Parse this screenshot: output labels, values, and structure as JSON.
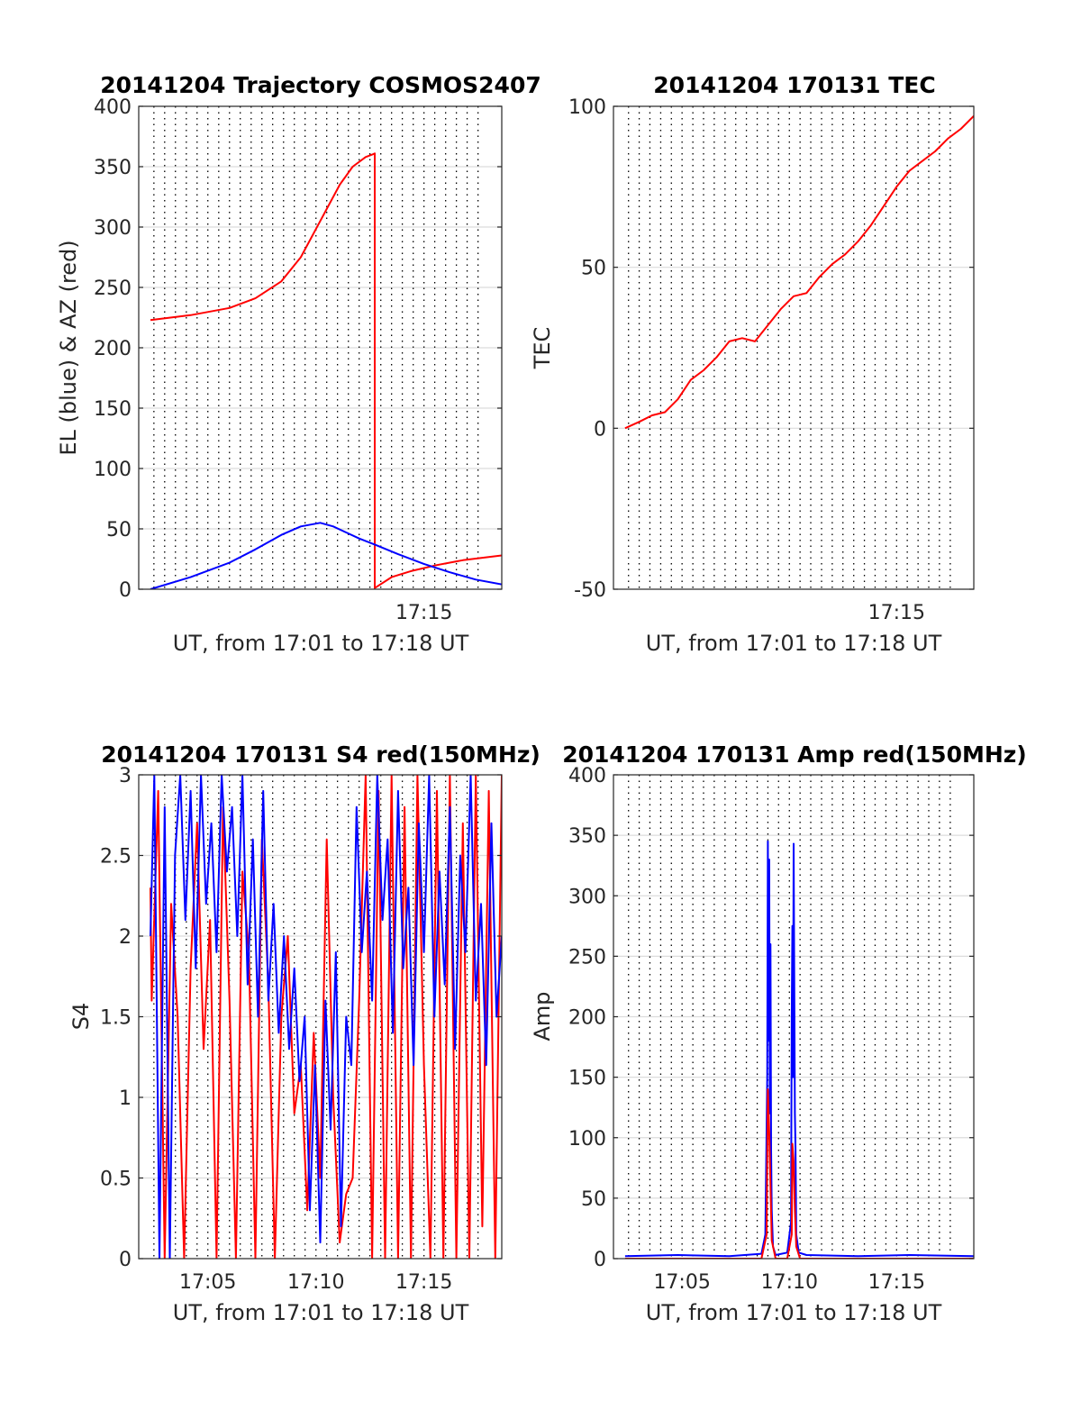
{
  "chart_data": [
    {
      "id": "trajectory",
      "type": "line",
      "title": "20141204 Trajectory COSMOS2407",
      "xlabel": "UT, from 17:01 to 17:18 UT",
      "ylabel": "EL (blue) & AZ (red)",
      "xlim": [
        17.03,
        17.31
      ],
      "ylim": [
        0,
        400
      ],
      "yticks": [
        0,
        50,
        100,
        150,
        200,
        250,
        300,
        350,
        400
      ],
      "xticks": [
        {
          "x": 17.25,
          "label": "17:15"
        }
      ],
      "grid_x": [
        17.0417,
        17.05,
        17.0583,
        17.0667,
        17.075,
        17.0833,
        17.0917,
        17.1,
        17.1083,
        17.1167,
        17.125,
        17.1333,
        17.1417,
        17.15,
        17.1583,
        17.1667,
        17.175,
        17.1833,
        17.1917,
        17.2,
        17.2083,
        17.2167,
        17.225,
        17.2333,
        17.2417,
        17.25,
        17.2583,
        17.2667,
        17.275,
        17.2833,
        17.2917
      ],
      "grid": "on",
      "series": [
        {
          "color": "#ff0000",
          "x": [
            17.039,
            17.07,
            17.1,
            17.12,
            17.14,
            17.155,
            17.17,
            17.185,
            17.195,
            17.205,
            17.21,
            17.212,
            17.212,
            17.225,
            17.24,
            17.26,
            17.28,
            17.31
          ],
          "y": [
            223,
            227,
            233,
            241,
            255,
            275,
            305,
            335,
            350,
            358,
            360,
            361,
            1,
            10,
            15,
            20,
            24,
            28
          ]
        },
        {
          "color": "#0000ff",
          "x": [
            17.039,
            17.07,
            17.1,
            17.12,
            17.14,
            17.155,
            17.17,
            17.18,
            17.19,
            17.2,
            17.212,
            17.23,
            17.25,
            17.27,
            17.29,
            17.31
          ],
          "y": [
            0,
            10,
            22,
            33,
            45,
            52,
            55,
            52,
            47,
            42,
            37,
            29,
            21,
            14,
            8,
            4
          ]
        }
      ]
    },
    {
      "id": "tec",
      "type": "line",
      "title": "20141204 170131 TEC",
      "xlabel": "UT, from 17:01 to 17:18 UT",
      "ylabel": "TEC",
      "xlim": [
        17.03,
        17.31
      ],
      "ylim": [
        -50,
        100
      ],
      "yticks": [
        -50,
        0,
        50,
        100
      ],
      "xticks": [
        {
          "x": 17.25,
          "label": "17:15"
        }
      ],
      "grid_x": [
        17.0417,
        17.05,
        17.0583,
        17.0667,
        17.075,
        17.0833,
        17.0917,
        17.1,
        17.1083,
        17.1167,
        17.125,
        17.1333,
        17.1417,
        17.15,
        17.1583,
        17.1667,
        17.175,
        17.1833,
        17.1917,
        17.2,
        17.2083,
        17.2167,
        17.225,
        17.2333,
        17.2417,
        17.25,
        17.2583,
        17.2667,
        17.275,
        17.2833,
        17.2917
      ],
      "grid": "on",
      "series": [
        {
          "color": "#ff0000",
          "x": [
            17.039,
            17.05,
            17.06,
            17.07,
            17.08,
            17.09,
            17.1,
            17.11,
            17.12,
            17.13,
            17.14,
            17.15,
            17.16,
            17.17,
            17.18,
            17.19,
            17.2,
            17.21,
            17.22,
            17.23,
            17.24,
            17.25,
            17.26,
            17.27,
            17.28,
            17.29,
            17.3,
            17.31
          ],
          "y": [
            0,
            2,
            4,
            5,
            9,
            15,
            18,
            22,
            27,
            28,
            27,
            32,
            37,
            41,
            42,
            47,
            51,
            54,
            58,
            63,
            69,
            75,
            80,
            83,
            86,
            90,
            93,
            97
          ]
        }
      ]
    },
    {
      "id": "s4",
      "type": "line",
      "title": "20141204 170131 S4 red(150MHz)",
      "xlabel": "UT, from 17:01 to 17:18 UT",
      "ylabel": "S4",
      "xlim": [
        17.03,
        17.31
      ],
      "ylim": [
        0,
        3
      ],
      "yticks": [
        0,
        0.5,
        1,
        1.5,
        2,
        2.5,
        3
      ],
      "xticks": [
        {
          "x": 17.0833,
          "label": "17:05"
        },
        {
          "x": 17.1667,
          "label": "17:10"
        },
        {
          "x": 17.25,
          "label": "17:15"
        }
      ],
      "grid_x": [
        17.0417,
        17.05,
        17.0583,
        17.0667,
        17.075,
        17.0833,
        17.0917,
        17.1,
        17.1083,
        17.1167,
        17.125,
        17.1333,
        17.1417,
        17.15,
        17.1583,
        17.1667,
        17.175,
        17.1833,
        17.1917,
        17.2,
        17.2083,
        17.2167,
        17.225,
        17.2333,
        17.2417,
        17.25,
        17.2583,
        17.2667,
        17.275,
        17.2833,
        17.2917
      ],
      "grid": "on",
      "series": [
        {
          "color": "#ff0000",
          "x": [
            17.039,
            17.04,
            17.045,
            17.05,
            17.055,
            17.06,
            17.065,
            17.07,
            17.075,
            17.08,
            17.085,
            17.09,
            17.095,
            17.1,
            17.105,
            17.11,
            17.115,
            17.12,
            17.125,
            17.13,
            17.135,
            17.14,
            17.145,
            17.15,
            17.155,
            17.16,
            17.165,
            17.17,
            17.175,
            17.18,
            17.185,
            17.19,
            17.195,
            17.2,
            17.205,
            17.21,
            17.215,
            17.22,
            17.225,
            17.23,
            17.235,
            17.24,
            17.245,
            17.25,
            17.255,
            17.26,
            17.265,
            17.27,
            17.275,
            17.28,
            17.285,
            17.29,
            17.295,
            17.3,
            17.305,
            17.31
          ],
          "y": [
            2.3,
            1.6,
            2.9,
            0,
            2.2,
            1.5,
            0,
            1.8,
            2.7,
            1.3,
            2.1,
            0,
            2.8,
            1.6,
            0,
            2.4,
            1.9,
            0,
            2.6,
            1.7,
            0,
            1.5,
            2.0,
            0.9,
            1.2,
            0.3,
            1.4,
            0.5,
            2.6,
            1.0,
            0.1,
            0.4,
            0.5,
            1.6,
            3.0,
            0,
            2.9,
            0,
            3.0,
            0,
            2.8,
            0,
            3.0,
            1.2,
            0,
            2.9,
            0,
            3.0,
            0,
            2.7,
            0,
            3.0,
            0.2,
            2.9,
            0,
            3.0
          ]
        },
        {
          "color": "#0000ff",
          "x": [
            17.039,
            17.042,
            17.046,
            17.05,
            17.054,
            17.058,
            17.062,
            17.066,
            17.07,
            17.074,
            17.078,
            17.082,
            17.086,
            17.09,
            17.094,
            17.098,
            17.102,
            17.106,
            17.11,
            17.114,
            17.118,
            17.122,
            17.126,
            17.13,
            17.134,
            17.138,
            17.142,
            17.146,
            17.15,
            17.154,
            17.158,
            17.162,
            17.166,
            17.17,
            17.174,
            17.178,
            17.182,
            17.186,
            17.19,
            17.194,
            17.198,
            17.202,
            17.206,
            17.21,
            17.214,
            17.218,
            17.222,
            17.226,
            17.23,
            17.234,
            17.238,
            17.242,
            17.246,
            17.25,
            17.254,
            17.258,
            17.262,
            17.266,
            17.27,
            17.274,
            17.278,
            17.282,
            17.286,
            17.29,
            17.294,
            17.298,
            17.302,
            17.306,
            17.31
          ],
          "y": [
            2.0,
            3.0,
            0,
            2.8,
            0,
            2.5,
            3.0,
            2.1,
            2.9,
            1.8,
            3.0,
            2.2,
            2.7,
            1.9,
            3.0,
            2.4,
            2.8,
            2.0,
            3.0,
            1.7,
            2.6,
            1.5,
            2.9,
            1.6,
            2.2,
            1.4,
            2.0,
            1.3,
            1.8,
            1.1,
            1.5,
            0.3,
            1.2,
            0.1,
            1.6,
            0.8,
            1.9,
            0.2,
            1.5,
            1.2,
            2.8,
            1.9,
            2.4,
            1.6,
            3.0,
            2.1,
            2.6,
            1.4,
            2.9,
            1.8,
            2.3,
            1.2,
            2.7,
            1.9,
            3.0,
            1.5,
            2.4,
            1.7,
            2.8,
            1.3,
            2.5,
            1.9,
            3.0,
            1.6,
            2.2,
            1.2,
            2.7,
            1.5,
            2.0
          ]
        }
      ]
    },
    {
      "id": "amp",
      "type": "line",
      "title": "20141204 170131 Amp red(150MHz)",
      "xlabel": "UT, from 17:01 to 17:18 UT",
      "ylabel": "Amp",
      "xlim": [
        17.03,
        17.31
      ],
      "ylim": [
        0,
        400
      ],
      "yticks": [
        0,
        50,
        100,
        150,
        200,
        250,
        300,
        350,
        400
      ],
      "xticks": [
        {
          "x": 17.0833,
          "label": "17:05"
        },
        {
          "x": 17.1667,
          "label": "17:10"
        },
        {
          "x": 17.25,
          "label": "17:15"
        }
      ],
      "grid_x": [
        17.0417,
        17.05,
        17.0583,
        17.0667,
        17.075,
        17.0833,
        17.0917,
        17.1,
        17.1083,
        17.1167,
        17.125,
        17.1333,
        17.1417,
        17.15,
        17.1583,
        17.1667,
        17.175,
        17.1833,
        17.1917,
        17.2,
        17.2083,
        17.2167,
        17.225,
        17.2333,
        17.2417,
        17.25,
        17.2583,
        17.2667,
        17.275,
        17.2833,
        17.2917
      ],
      "grid": "on",
      "series": [
        {
          "color": "#0000ff",
          "x": [
            17.039,
            17.08,
            17.12,
            17.145,
            17.148,
            17.1495,
            17.15,
            17.1505,
            17.151,
            17.1515,
            17.152,
            17.1525,
            17.153,
            17.154,
            17.156,
            17.165,
            17.168,
            17.1685,
            17.169,
            17.1695,
            17.17,
            17.1705,
            17.171,
            17.1715,
            17.172,
            17.174,
            17.18,
            17.22,
            17.26,
            17.31
          ],
          "y": [
            2,
            3,
            2,
            4,
            20,
            150,
            345,
            180,
            330,
            120,
            260,
            90,
            40,
            10,
            3,
            5,
            30,
            200,
            275,
            150,
            343,
            230,
            120,
            90,
            20,
            5,
            3,
            2,
            3,
            2
          ]
        },
        {
          "color": "#ff0000",
          "x": [
            17.039,
            17.145,
            17.149,
            17.15,
            17.151,
            17.152,
            17.153,
            17.156,
            17.165,
            17.1685,
            17.169,
            17.17,
            17.171,
            17.172,
            17.175,
            17.31
          ],
          "y": [
            0,
            0,
            20,
            140,
            105,
            60,
            15,
            0,
            0,
            20,
            95,
            80,
            40,
            10,
            0,
            0
          ]
        }
      ]
    }
  ]
}
